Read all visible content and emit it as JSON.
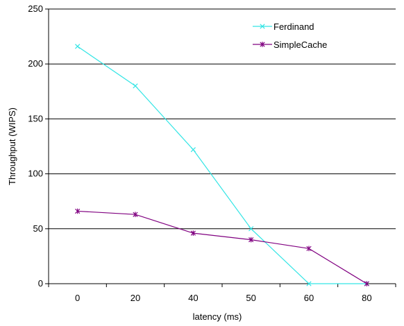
{
  "chart_data": {
    "type": "line",
    "categories": [
      "0",
      "20",
      "40",
      "50",
      "60",
      "80"
    ],
    "xlabel": "latency (ms)",
    "ylabel": "Throughput (WIPS)",
    "ylim": [
      0,
      250
    ],
    "yticks": [
      0,
      50,
      100,
      150,
      200,
      250
    ],
    "grid": "horizontal",
    "legend_position": "top-right",
    "series": [
      {
        "name": "Ferdinand",
        "values": [
          216,
          180,
          122,
          50,
          0,
          0
        ],
        "color": "#33E5E5",
        "marker": "x"
      },
      {
        "name": "SimpleCache",
        "values": [
          66,
          63,
          46,
          40,
          32,
          0
        ],
        "color": "#800080",
        "marker": "star"
      }
    ]
  }
}
